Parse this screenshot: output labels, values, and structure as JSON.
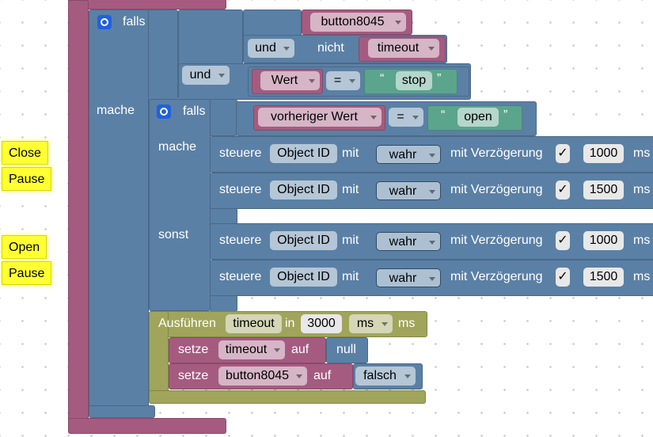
{
  "comments": [
    "Close",
    "Pause",
    "Open",
    "Pause"
  ],
  "string_quotes": [
    "“",
    "”"
  ],
  "outer_if": {
    "keyword": "falls",
    "var": "button8045",
    "and1": "und",
    "not": "nicht",
    "timeout": "timeout",
    "and2": "und",
    "var2": "Wert",
    "op": "=",
    "str": "stop",
    "do": "mache"
  },
  "inner_if": {
    "keyword": "falls",
    "var": "vorheriger Wert",
    "op": "=",
    "str": "open",
    "do": "mache",
    "else": "sonst"
  },
  "controls": [
    {
      "verb": "steuere",
      "object": "Object ID",
      "with": "mit",
      "value": "wahr",
      "delay_label": "mit Verzögerung",
      "check": "✓",
      "delay": 1000,
      "unit": "ms"
    },
    {
      "verb": "steuere",
      "object": "Object ID",
      "with": "mit",
      "value": "wahr",
      "delay_label": "mit Verzögerung",
      "check": "✓",
      "delay": 1500,
      "unit": "ms"
    },
    {
      "verb": "steuere",
      "object": "Object ID",
      "with": "mit",
      "value": "wahr",
      "delay_label": "mit Verzögerung",
      "check": "✓",
      "delay": 1000,
      "unit": "ms"
    },
    {
      "verb": "steuere",
      "object": "Object ID",
      "with": "mit",
      "value": "wahr",
      "delay_label": "mit Verzögerung",
      "check": "✓",
      "delay": 1500,
      "unit": "ms"
    }
  ],
  "timeout_block": {
    "label": "Ausführen",
    "name": "timeout",
    "in": "in",
    "value": 3000,
    "unit_select": "ms",
    "unit": "ms"
  },
  "sets": [
    {
      "verb": "setze",
      "var": "timeout",
      "to": "auf",
      "value": "null"
    },
    {
      "verb": "setze",
      "var": "button8045",
      "to": "auf",
      "value": "falsch"
    }
  ]
}
